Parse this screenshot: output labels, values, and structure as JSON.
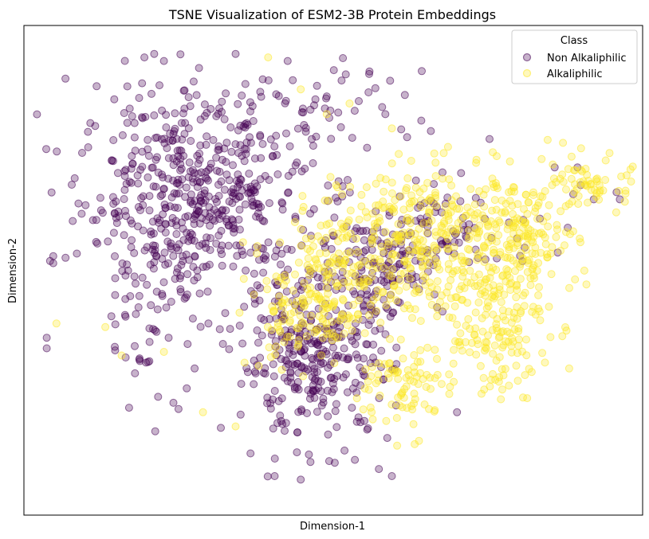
{
  "chart_data": {
    "type": "scatter",
    "title": "TSNE Visualization of ESM2-3B Protein Embeddings",
    "xlabel": "Dimension-1",
    "ylabel": "Dimension-2",
    "xticks": "none",
    "yticks": "none",
    "grid": false,
    "legend": {
      "title": "Class",
      "placement": "top-right"
    },
    "series": [
      {
        "name": "Non Alkaliphilic",
        "color": "#440154",
        "alpha": 0.3,
        "clusters": [
          {
            "cx": -42,
            "cy": 32,
            "sx": 18,
            "sy": 14,
            "n": 520
          },
          {
            "cx": -6,
            "cy": -14,
            "sx": 12,
            "sy": 11,
            "n": 320
          },
          {
            "cx": 14,
            "cy": 12,
            "sx": 10,
            "sy": 7,
            "n": 120
          },
          {
            "cx": 34,
            "cy": 22,
            "sx": 16,
            "sy": 6,
            "n": 90
          },
          {
            "cx": -10,
            "cy": 58,
            "sx": 24,
            "sy": 8,
            "n": 60
          },
          {
            "cx": -55,
            "cy": 0,
            "sx": 8,
            "sy": 14,
            "n": 60
          }
        ],
        "points": [
          [
            -55,
            72
          ],
          [
            -52,
            70
          ],
          [
            -58,
            71
          ],
          [
            -30,
            72
          ],
          [
            -14,
            70
          ],
          [
            -2,
            60
          ],
          [
            -5,
            63
          ],
          [
            -68,
            42
          ],
          [
            -86,
            15
          ],
          [
            -86,
            13
          ],
          [
            -88,
            -8
          ],
          [
            -88,
            -11
          ],
          [
            -18,
            -47
          ],
          [
            -10,
            -48
          ],
          [
            -7,
            -43
          ],
          [
            18,
            -47
          ],
          [
            14,
            -45
          ],
          [
            38,
            -29
          ],
          [
            15,
            57
          ],
          [
            16,
            55
          ],
          [
            68,
            40
          ],
          [
            75,
            40
          ],
          [
            80,
            31
          ],
          [
            88,
            31
          ],
          [
            76,
            35
          ],
          [
            87,
            33
          ],
          [
            72,
            23
          ],
          [
            48,
            48
          ]
        ]
      },
      {
        "name": "Alkaliphilic",
        "color": "#fde725",
        "alpha": 0.3,
        "clusters": [
          {
            "cx": 2,
            "cy": 12,
            "sx": 10,
            "sy": 9,
            "n": 140
          },
          {
            "cx": -8,
            "cy": -3,
            "sx": 9,
            "sy": 7,
            "n": 110
          },
          {
            "cx": 30,
            "cy": 20,
            "sx": 13,
            "sy": 10,
            "n": 260
          },
          {
            "cx": 55,
            "cy": 20,
            "sx": 10,
            "sy": 9,
            "n": 200
          },
          {
            "cx": 48,
            "cy": -5,
            "sx": 9,
            "sy": 10,
            "n": 150
          },
          {
            "cx": 22,
            "cy": -22,
            "sx": 7,
            "sy": 6,
            "n": 80
          },
          {
            "cx": 80,
            "cy": 35,
            "sx": 6,
            "sy": 4,
            "n": 60
          }
        ],
        "points": [
          [
            -20,
            71
          ],
          [
            -10,
            62
          ],
          [
            5,
            58
          ],
          [
            18,
            51
          ],
          [
            -2,
            55
          ],
          [
            -65,
            -13
          ],
          [
            -70,
            -5
          ],
          [
            -85,
            -4
          ],
          [
            -30,
            -33
          ],
          [
            -52,
            -12
          ],
          [
            25,
            -38
          ],
          [
            -40,
            -29
          ],
          [
            65,
            -15
          ]
        ]
      }
    ],
    "xlim": [
      -95,
      95
    ],
    "ylim": [
      -58,
      80
    ]
  }
}
